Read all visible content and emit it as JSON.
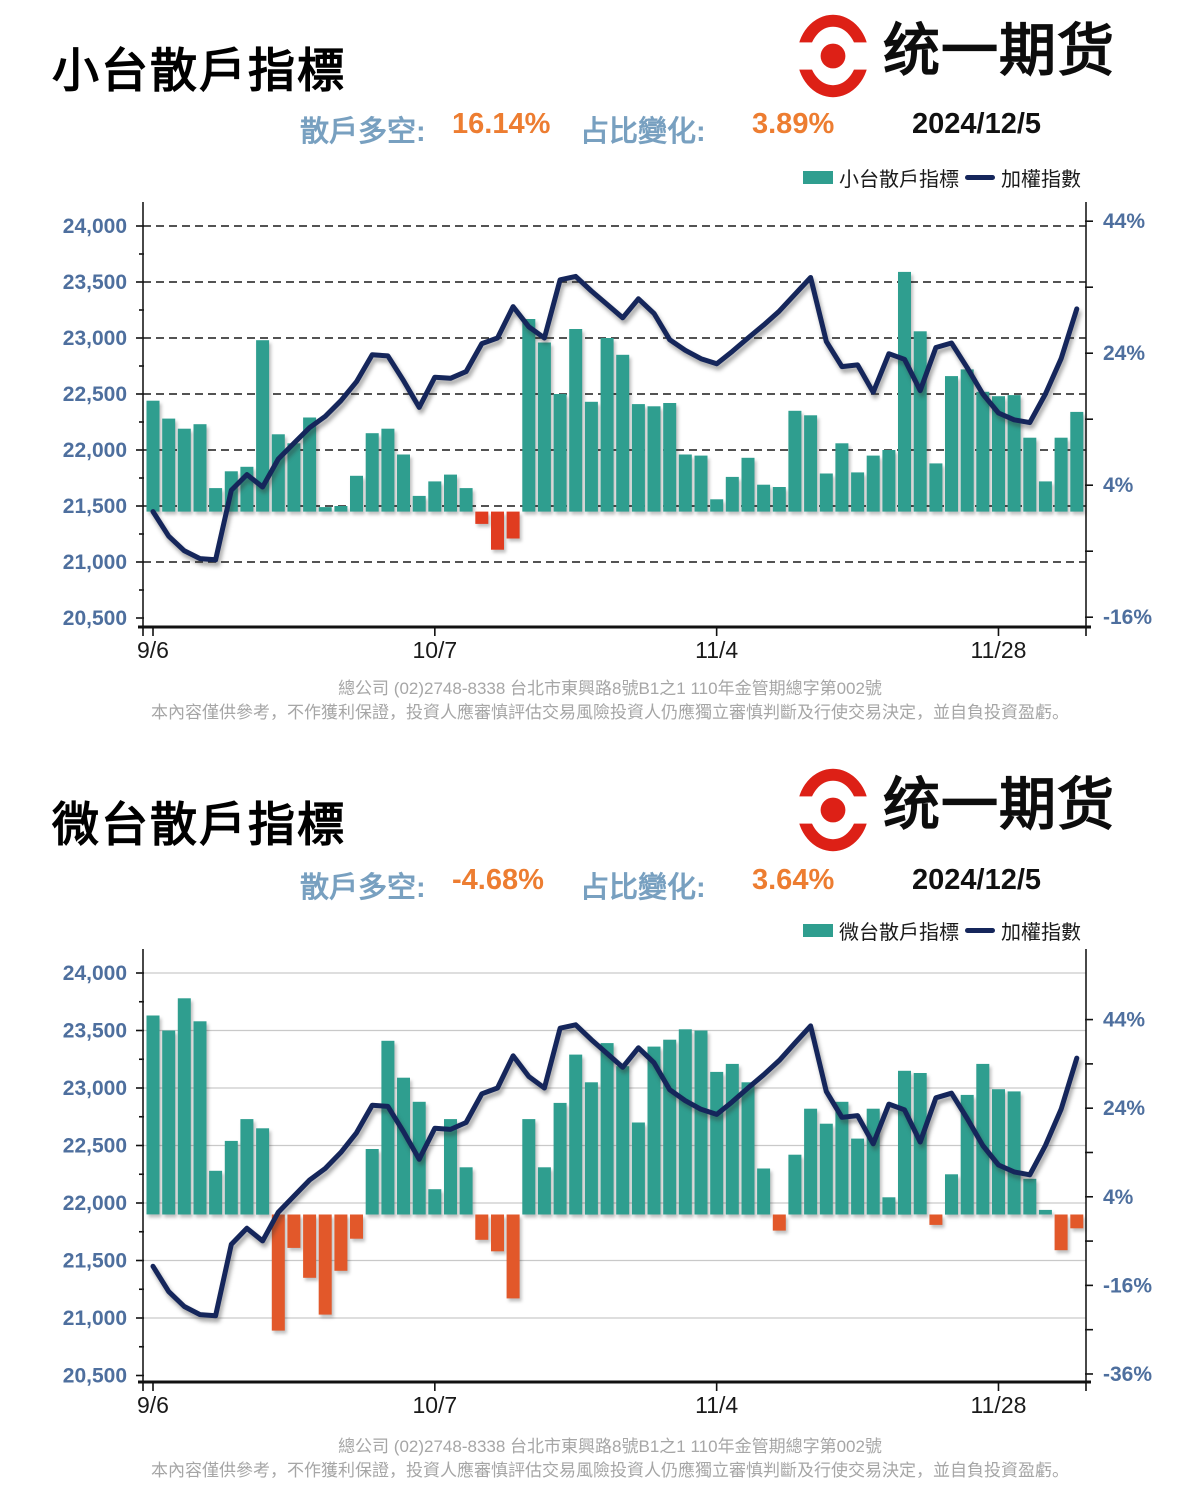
{
  "logo": {
    "text": "统一期货",
    "emblem_color": "#DD2016"
  },
  "colors": {
    "teal": "#2F9E8F",
    "navy": "#15265B",
    "negative_top": "#E03C20",
    "negative_bottom": "#E2582A",
    "stat_label": "#78A0C0",
    "stat_value": "#ED7D31",
    "axis_label": "#4E6F9E",
    "footer_gray": "#A6A6A6"
  },
  "footer": {
    "line1": "總公司 (02)2748-8338 台北市東興路8號B1之1 110年金管期總字第002號",
    "line2": "本內容僅供參考，不作獲利保證，投資人應審慎評估交易風險投資人仍應獨立審慎判斷及行使交易決定，並自負投資盈虧。"
  },
  "panels": [
    {
      "title": "小台散戶指標",
      "stats": {
        "label1": "散戶多空:",
        "value1": "16.14%",
        "label2": "占比變化:",
        "value2": "3.89%",
        "date": "2024/12/5"
      },
      "legend": {
        "bar": "小台散戶指標",
        "line": "加權指數"
      }
    },
    {
      "title": "微台散戶指標",
      "stats": {
        "label1": "散戶多空:",
        "value1": "-4.68%",
        "label2": "占比變化:",
        "value2": "3.64%",
        "date": "2024/12/5"
      },
      "legend": {
        "bar": "微台散戶指標",
        "line": "加權指數"
      }
    }
  ],
  "chart_data": [
    {
      "type": "bar",
      "subtype": "bar+line combo",
      "title": "小台散戶指標",
      "bar_series_name": "小台散戶指標",
      "line_series_name": "加權指數",
      "gridlines": "black-dashed",
      "positive_color": "#2F9E8F",
      "negative_color": "#E03C20",
      "line_color": "#15265B",
      "left_axis": {
        "min": 20500,
        "max": 24000,
        "step": 500
      },
      "right_axis": {
        "unit": "%",
        "labeled_ticks": [
          44,
          24,
          4,
          -16
        ],
        "min_tick": -16,
        "max_tick": 44,
        "minor_step": 10
      },
      "x_ticks": [
        {
          "label": "9/6",
          "day": 0
        },
        {
          "label": "10/7",
          "day": 18
        },
        {
          "label": "11/4",
          "day": 36
        },
        {
          "label": "11/28",
          "day": 54
        }
      ],
      "baseline_index": 21450,
      "bars_index_scale": [
        22440,
        22280,
        22190,
        22230,
        21660,
        21810,
        21850,
        22980,
        22140,
        22060,
        22290,
        21490,
        21500,
        21770,
        22150,
        22190,
        21960,
        21590,
        21720,
        21780,
        21660,
        21340,
        21110,
        21210,
        23170,
        22960,
        22500,
        23080,
        22430,
        23000,
        22850,
        22410,
        22390,
        22420,
        21960,
        21950,
        21560,
        21760,
        21930,
        21690,
        21670,
        22350,
        22310,
        21790,
        22060,
        21800,
        21950,
        22000,
        23590,
        23060,
        21880,
        22660,
        22720,
        22520,
        22480,
        22490,
        22110,
        21720,
        22110,
        22340
      ],
      "line_index_scale": [
        21450,
        21230,
        21100,
        21030,
        21020,
        21640,
        21780,
        21670,
        21920,
        22060,
        22200,
        22300,
        22440,
        22610,
        22850,
        22840,
        22620,
        22380,
        22650,
        22640,
        22700,
        22950,
        23000,
        23280,
        23100,
        23000,
        23520,
        23550,
        23420,
        23300,
        23180,
        23350,
        23220,
        22985,
        22890,
        22815,
        22770,
        22880,
        23000,
        23115,
        23240,
        23390,
        23540,
        22970,
        22745,
        22760,
        22515,
        22860,
        22810,
        22530,
        22915,
        22955,
        22735,
        22500,
        22330,
        22270,
        22245,
        22500,
        22815,
        23260
      ]
    },
    {
      "type": "bar",
      "subtype": "bar+line combo",
      "title": "微台散戶指標",
      "bar_series_name": "微台散戶指標",
      "line_series_name": "加權指數",
      "gridlines": "light-gray-solid",
      "positive_color": "#2F9E8F",
      "negative_color": "#E2582A",
      "line_color": "#15265B",
      "left_axis": {
        "min": 20500,
        "max": 24000,
        "step": 500
      },
      "right_axis": {
        "unit": "%",
        "labeled_ticks": [
          44,
          24,
          4,
          -16,
          -36
        ],
        "min_tick": -36,
        "max_tick": 44,
        "minor_step": 10
      },
      "x_ticks": [
        {
          "label": "9/6",
          "day": 0
        },
        {
          "label": "10/7",
          "day": 18
        },
        {
          "label": "11/4",
          "day": 36
        },
        {
          "label": "11/28",
          "day": 54
        }
      ],
      "baseline_index": 21900,
      "bars_index_scale": [
        23630,
        23500,
        23780,
        23580,
        22280,
        22540,
        22730,
        22650,
        20890,
        21610,
        21350,
        21030,
        21410,
        21690,
        22470,
        23410,
        23090,
        22880,
        22120,
        22730,
        22310,
        21680,
        21580,
        21170,
        22730,
        22310,
        22870,
        23290,
        23050,
        23390,
        23190,
        22700,
        23360,
        23420,
        23510,
        23500,
        23140,
        23210,
        23050,
        22300,
        21760,
        22420,
        22820,
        22690,
        22880,
        22560,
        22820,
        22050,
        23150,
        23130,
        21810,
        22250,
        22940,
        23210,
        22990,
        22970,
        22210,
        21940,
        21590,
        21780
      ],
      "line_index_scale": [
        21450,
        21230,
        21100,
        21030,
        21020,
        21640,
        21780,
        21670,
        21920,
        22060,
        22200,
        22300,
        22440,
        22610,
        22850,
        22840,
        22620,
        22380,
        22650,
        22640,
        22700,
        22950,
        23000,
        23280,
        23100,
        23000,
        23520,
        23550,
        23420,
        23300,
        23180,
        23350,
        23220,
        22985,
        22890,
        22815,
        22770,
        22880,
        23000,
        23115,
        23240,
        23390,
        23540,
        22970,
        22745,
        22760,
        22515,
        22860,
        22810,
        22530,
        22915,
        22955,
        22735,
        22500,
        22330,
        22270,
        22245,
        22500,
        22815,
        23260
      ]
    }
  ]
}
